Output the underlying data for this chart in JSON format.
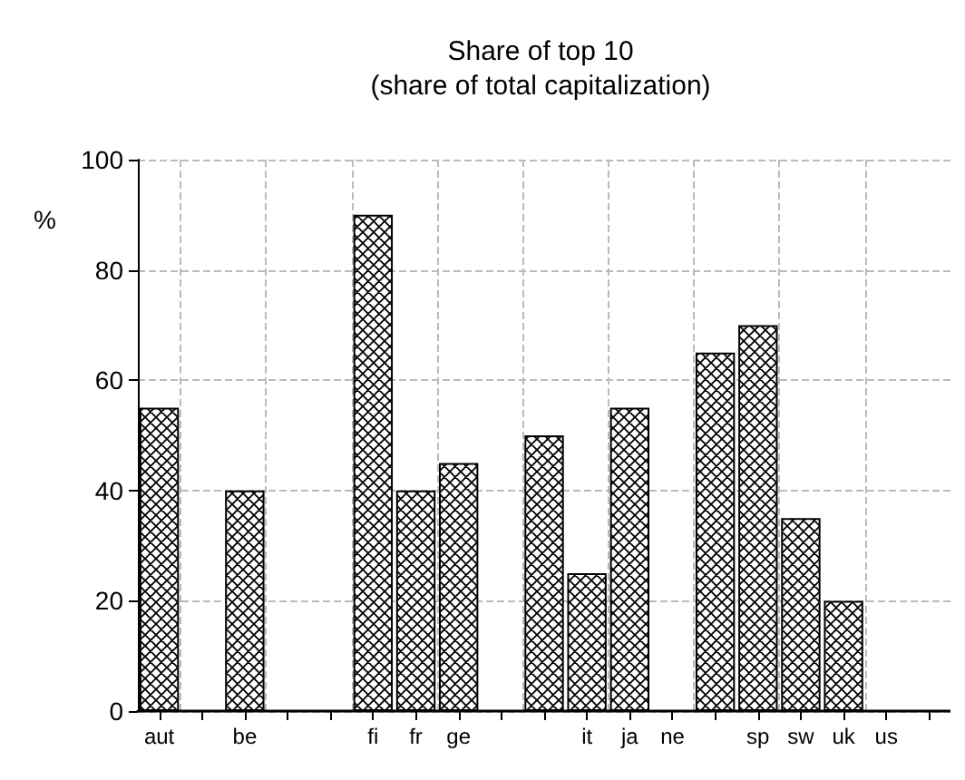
{
  "chart_data": {
    "type": "bar",
    "title": "Share of top 10\n(share of total capitalization)",
    "ylabel": "%",
    "categories": [
      "aut",
      null,
      "be",
      null,
      null,
      "fi",
      "fr",
      "ge",
      null,
      null,
      "it",
      "ja",
      "ne",
      null,
      "sp",
      "sw",
      "uk",
      "us",
      null
    ],
    "values": [
      55,
      null,
      40,
      null,
      null,
      90,
      40,
      45,
      null,
      50,
      25,
      55,
      null,
      65,
      70,
      35,
      20,
      null,
      null
    ],
    "color": "#000000",
    "ylim": [
      0,
      100
    ],
    "yticks": [
      0,
      20,
      40,
      60,
      80,
      100
    ],
    "grid": true
  }
}
